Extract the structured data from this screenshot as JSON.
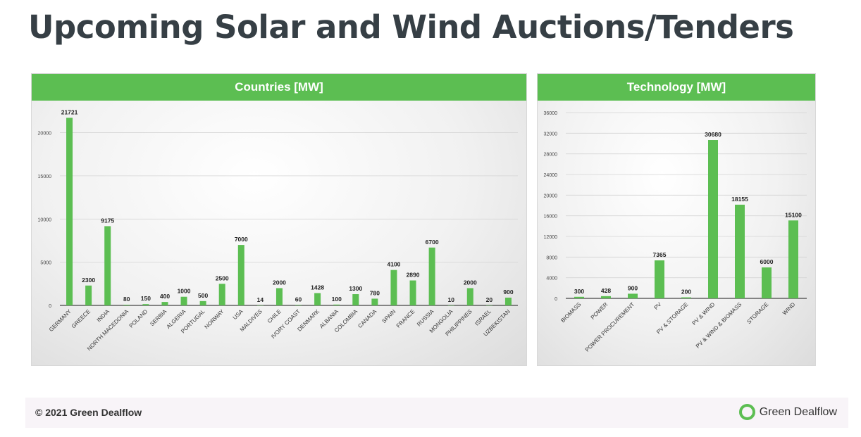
{
  "page": {
    "title": "Upcoming Solar and Wind Auctions/Tenders",
    "footer_copyright": "© 2021 Green Dealflow",
    "brand_name": "Green Dealflow"
  },
  "colors": {
    "bar": "#5cbe52",
    "header": "#5cbe52",
    "title": "#363f45"
  },
  "chart_data": [
    {
      "type": "bar",
      "title": "Countries [MW]",
      "categories": [
        "GERMANY",
        "GREECE",
        "INDIA",
        "NORTH MACEDONIA",
        "POLAND",
        "SERBIA",
        "ALGERIA",
        "PORTUGAL",
        "NORWAY",
        "USA",
        "MALDIVES",
        "CHILE",
        "IVORY COAST",
        "DENMARK",
        "ALBANIA",
        "COLOMBIA",
        "CANADA",
        "SPAIN",
        "FRANCE",
        "RUSSIA",
        "MONGOLIA",
        "PHILIPPINES",
        "ISRAEL",
        "UZBEKISTAN"
      ],
      "values": [
        21721,
        2300,
        9175,
        80,
        150,
        400,
        1000,
        500,
        2500,
        7000,
        14,
        2000,
        60,
        1428,
        100,
        1300,
        780,
        4100,
        2890,
        6700,
        10,
        2000,
        20,
        900
      ],
      "ylim": [
        0,
        22000
      ],
      "yticks": [
        0,
        5000,
        10000,
        15000,
        20000
      ],
      "grid": true
    },
    {
      "type": "bar",
      "title": "Technology [MW]",
      "categories": [
        "BIOMASS",
        "POWER",
        "POWER PROCUREMENT",
        "PV",
        "PV & STORAGE",
        "PV & WIND",
        "PV & WIND & BIOMASS",
        "STORAGE",
        "WIND"
      ],
      "values": [
        300,
        428,
        900,
        7365,
        200,
        30680,
        18155,
        6000,
        15100
      ],
      "ylim": [
        0,
        36000
      ],
      "yticks": [
        0,
        4000,
        8000,
        12000,
        16000,
        20000,
        24000,
        28000,
        32000,
        36000
      ],
      "grid": true
    }
  ]
}
